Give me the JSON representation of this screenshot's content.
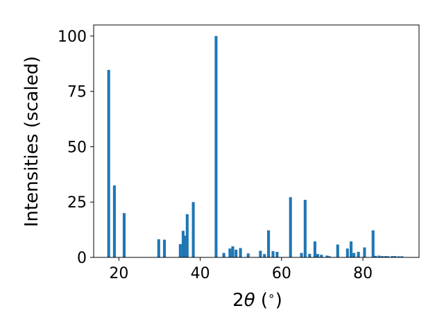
{
  "chart_data": {
    "type": "bar",
    "title": "",
    "xlabel": "2θ (°)",
    "ylabel": "Intensities (scaled)",
    "xlabel_main": "2",
    "xlabel_theta": "θ",
    "xlabel_unit": " (",
    "xlabel_deg": "∘",
    "xlabel_close": ")",
    "xlim": [
      13.8,
      93.8
    ],
    "ylim": [
      0,
      105
    ],
    "xticks": [
      20,
      40,
      60,
      80
    ],
    "yticks": [
      0,
      25,
      50,
      75,
      100
    ],
    "grid": false,
    "color": "#1f77b4",
    "x": [
      17.5,
      18.9,
      21.3,
      29.8,
      31.2,
      35.1,
      35.8,
      36.3,
      36.8,
      38.3,
      43.9,
      45.8,
      47.3,
      48.0,
      48.8,
      49.9,
      51.8,
      54.8,
      55.8,
      56.8,
      57.9,
      58.9,
      62.2,
      64.9,
      65.8,
      66.9,
      68.2,
      68.9,
      69.8,
      71.2,
      71.8,
      73.8,
      76.2,
      77.1,
      77.8,
      78.9,
      80.4,
      82.5,
      83.1,
      84.0,
      84.8,
      85.6,
      86.2,
      87.2,
      87.9,
      88.8,
      89.6
    ],
    "values": [
      84.7,
      32.5,
      20.0,
      8.2,
      8.0,
      6.0,
      12.0,
      9.8,
      19.5,
      25.0,
      100.0,
      2.0,
      4.0,
      5.0,
      3.5,
      4.2,
      1.8,
      3.0,
      1.5,
      12.2,
      2.8,
      2.5,
      27.2,
      2.0,
      26.0,
      1.6,
      7.2,
      1.5,
      1.2,
      0.8,
      0.5,
      5.8,
      4.0,
      7.2,
      2.0,
      2.5,
      4.5,
      12.2,
      0.7,
      0.8,
      0.6,
      0.6,
      0.5,
      0.6,
      0.6,
      0.5,
      0.5
    ]
  }
}
